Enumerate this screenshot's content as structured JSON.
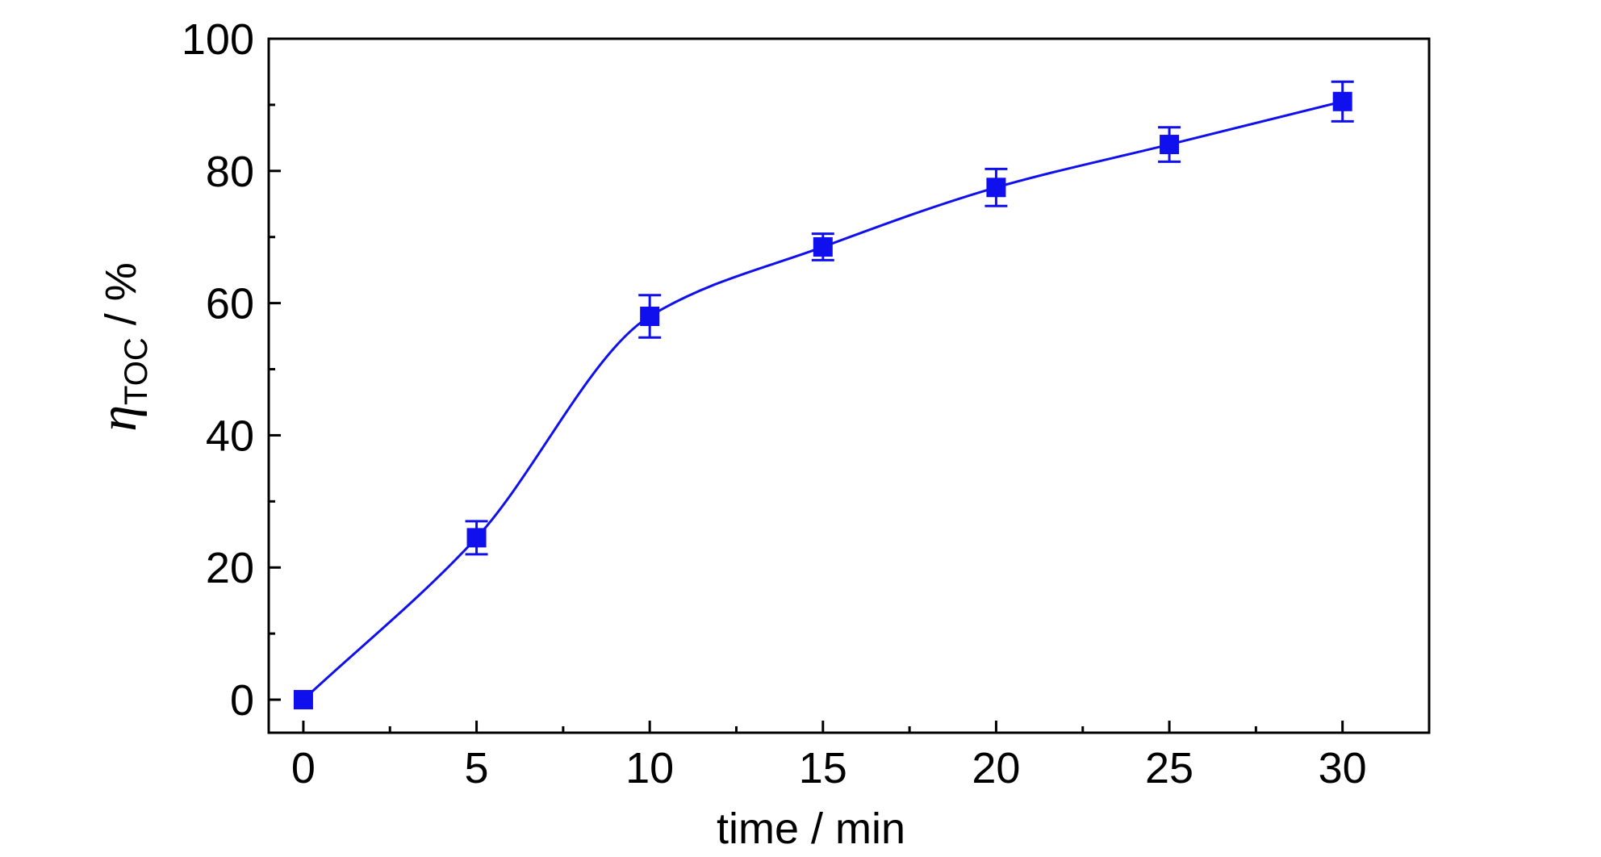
{
  "chart_data": {
    "type": "line",
    "xlabel": "time / min",
    "ylabel": {
      "symbol": "η",
      "subscript": "TOC",
      "suffix": " / %"
    },
    "xlim": [
      -1,
      32.5
    ],
    "ylim": [
      -5,
      100
    ],
    "x_ticks": [
      "0",
      "5",
      "10",
      "15",
      "20",
      "25",
      "30"
    ],
    "y_ticks": [
      "0",
      "20",
      "40",
      "60",
      "80",
      "100"
    ],
    "grid": false,
    "legend": "none",
    "marker": "square",
    "color": "#1010ee",
    "series": [
      {
        "x": [
          0,
          5,
          10,
          15,
          20,
          25,
          30
        ],
        "y": [
          0,
          24.5,
          58,
          68.5,
          77.5,
          84,
          90.5
        ],
        "error": [
          0,
          2.5,
          3.2,
          2.0,
          2.8,
          2.6,
          3.0
        ]
      }
    ]
  }
}
